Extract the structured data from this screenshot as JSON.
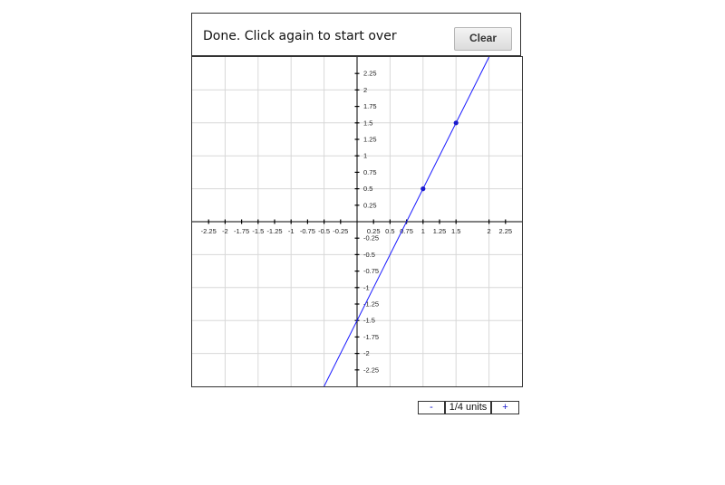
{
  "status": {
    "message": "Done. Click again to start over"
  },
  "toolbar": {
    "clear_label": "Clear"
  },
  "zoom": {
    "minus_label": "-",
    "units_label": "1/4 units",
    "plus_label": "+"
  },
  "colors": {
    "line": "#1a1aff",
    "point": "#1a1acc",
    "grid": "#d8d8d8",
    "axis": "#000000"
  },
  "chart_data": {
    "type": "line",
    "title": "",
    "xlabel": "",
    "ylabel": "",
    "xlim": [
      -2.5,
      2.5
    ],
    "ylim": [
      -2.5,
      2.5
    ],
    "grid": true,
    "grid_step": 0.5,
    "tick_step": 0.25,
    "x_ticks": [
      "-2.25",
      "-2",
      "-1.75",
      "-1.5",
      "-1.25",
      "-1",
      "-0.75",
      "-0.5",
      "-0.25",
      "0.25",
      "0.5",
      "0.75",
      "1",
      "1.25",
      "1.5",
      "2",
      "2.25"
    ],
    "y_ticks": [
      "2.25",
      "2",
      "1.75",
      "1.5",
      "1.25",
      "1",
      "0.75",
      "0.5",
      "0.25",
      "-0.25",
      "-0.5",
      "-0.75",
      "-1",
      "-1.25",
      "-1.5",
      "-1.75",
      "-2",
      "-2.25"
    ],
    "points": [
      {
        "x": 1,
        "y": 0.5
      },
      {
        "x": 1.5,
        "y": 1.5
      }
    ],
    "line": {
      "slope": 2,
      "intercept": -1.5
    }
  }
}
